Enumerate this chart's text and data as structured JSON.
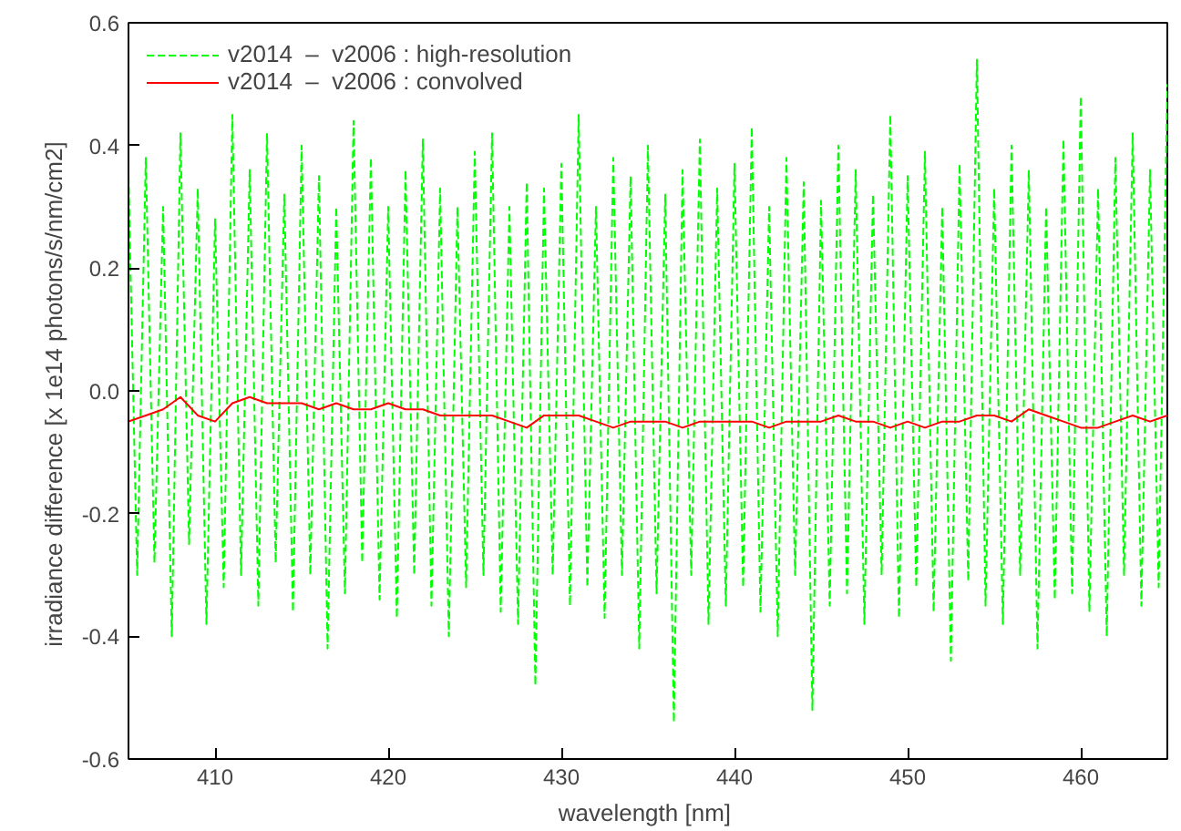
{
  "chart_data": {
    "type": "line",
    "xlabel": "wavelength  [nm]",
    "ylabel": "irradiance difference  [x 1e14 photons/s/nm/cm2]",
    "xlim": [
      405,
      465
    ],
    "ylim": [
      -0.6,
      0.6
    ],
    "xticks": [
      410,
      420,
      430,
      440,
      450,
      460
    ],
    "yticks": [
      -0.6,
      -0.4,
      -0.2,
      {
        "value": 0,
        "label": "0.0"
      },
      0.2,
      0.4,
      0.6
    ],
    "grid": false,
    "legend": "top left",
    "marker": "none",
    "series": [
      {
        "name": "v2014  –  v2006 : high-resolution",
        "color": "#00ff00",
        "line_style": "dashed",
        "x": [
          405,
          405.5,
          406,
          406.5,
          407,
          407.5,
          408,
          408.5,
          409,
          409.5,
          410,
          410.5,
          411,
          411.5,
          412,
          412.5,
          413,
          413.5,
          414,
          414.5,
          415,
          415.5,
          416,
          416.5,
          417,
          417.5,
          418,
          418.5,
          419,
          419.5,
          420,
          420.5,
          421,
          421.5,
          422,
          422.5,
          423,
          423.5,
          424,
          424.5,
          425,
          425.5,
          426,
          426.5,
          427,
          427.5,
          428,
          428.5,
          429,
          429.5,
          430,
          430.5,
          431,
          431.5,
          432,
          432.5,
          433,
          433.5,
          434,
          434.5,
          435,
          435.5,
          436,
          436.5,
          437,
          437.5,
          438,
          438.5,
          439,
          439.5,
          440,
          440.5,
          441,
          441.5,
          442,
          442.5,
          443,
          443.5,
          444,
          444.5,
          445,
          445.5,
          446,
          446.5,
          447,
          447.5,
          448,
          448.5,
          449,
          449.5,
          450,
          450.5,
          451,
          451.5,
          452,
          452.5,
          453,
          453.5,
          454,
          454.5,
          455,
          455.5,
          456,
          456.5,
          457,
          457.5,
          458,
          458.5,
          459,
          459.5,
          460,
          460.5,
          461,
          461.5,
          462,
          462.5,
          463,
          463.5,
          464,
          464.5,
          465
        ],
        "values": [
          0.35,
          -0.3,
          0.38,
          -0.28,
          0.3,
          -0.4,
          0.42,
          -0.25,
          0.33,
          -0.38,
          0.28,
          -0.32,
          0.45,
          -0.3,
          0.36,
          -0.35,
          0.42,
          -0.28,
          0.32,
          -0.36,
          0.4,
          -0.3,
          0.35,
          -0.42,
          0.3,
          -0.33,
          0.44,
          -0.28,
          0.38,
          -0.34,
          0.3,
          -0.37,
          0.36,
          -0.3,
          0.41,
          -0.35,
          0.33,
          -0.4,
          0.3,
          -0.32,
          0.39,
          -0.3,
          0.42,
          -0.36,
          0.3,
          -0.38,
          0.34,
          -0.48,
          0.33,
          -0.3,
          0.37,
          -0.35,
          0.45,
          -0.32,
          0.3,
          -0.37,
          0.38,
          -0.3,
          0.35,
          -0.42,
          0.4,
          -0.33,
          0.32,
          -0.54,
          0.36,
          -0.3,
          0.41,
          -0.38,
          0.33,
          -0.35,
          0.37,
          -0.32,
          0.43,
          -0.36,
          0.3,
          -0.4,
          0.38,
          -0.3,
          0.34,
          -0.52,
          0.31,
          -0.35,
          0.4,
          -0.33,
          0.36,
          -0.38,
          0.32,
          -0.3,
          0.45,
          -0.37,
          0.35,
          -0.32,
          0.39,
          -0.36,
          0.3,
          -0.44,
          0.37,
          -0.31,
          0.54,
          -0.35,
          0.33,
          -0.38,
          0.4,
          -0.3,
          0.36,
          -0.42,
          0.3,
          -0.34,
          0.41,
          -0.33,
          0.48,
          -0.36,
          0.33,
          -0.4,
          0.38,
          -0.3,
          0.42,
          -0.35,
          0.36,
          -0.32,
          0.5
        ]
      },
      {
        "name": "v2014  –  v2006 : convolved",
        "color": "#ff0000",
        "line_style": "solid",
        "x": [
          405,
          406,
          407,
          408,
          409,
          410,
          411,
          412,
          413,
          414,
          415,
          416,
          417,
          418,
          419,
          420,
          421,
          422,
          423,
          424,
          425,
          426,
          427,
          428,
          429,
          430,
          431,
          432,
          433,
          434,
          435,
          436,
          437,
          438,
          439,
          440,
          441,
          442,
          443,
          444,
          445,
          446,
          447,
          448,
          449,
          450,
          451,
          452,
          453,
          454,
          455,
          456,
          457,
          458,
          459,
          460,
          461,
          462,
          463,
          464,
          465
        ],
        "values": [
          -0.05,
          -0.04,
          -0.03,
          -0.01,
          -0.04,
          -0.05,
          -0.02,
          -0.01,
          -0.02,
          -0.02,
          -0.02,
          -0.03,
          -0.02,
          -0.03,
          -0.03,
          -0.02,
          -0.03,
          -0.03,
          -0.04,
          -0.04,
          -0.04,
          -0.04,
          -0.05,
          -0.06,
          -0.04,
          -0.04,
          -0.04,
          -0.05,
          -0.06,
          -0.05,
          -0.05,
          -0.05,
          -0.06,
          -0.05,
          -0.05,
          -0.05,
          -0.05,
          -0.06,
          -0.05,
          -0.05,
          -0.05,
          -0.04,
          -0.05,
          -0.05,
          -0.06,
          -0.05,
          -0.06,
          -0.05,
          -0.05,
          -0.04,
          -0.04,
          -0.05,
          -0.03,
          -0.04,
          -0.05,
          -0.06,
          -0.06,
          -0.05,
          -0.04,
          -0.05,
          -0.04
        ]
      }
    ]
  }
}
